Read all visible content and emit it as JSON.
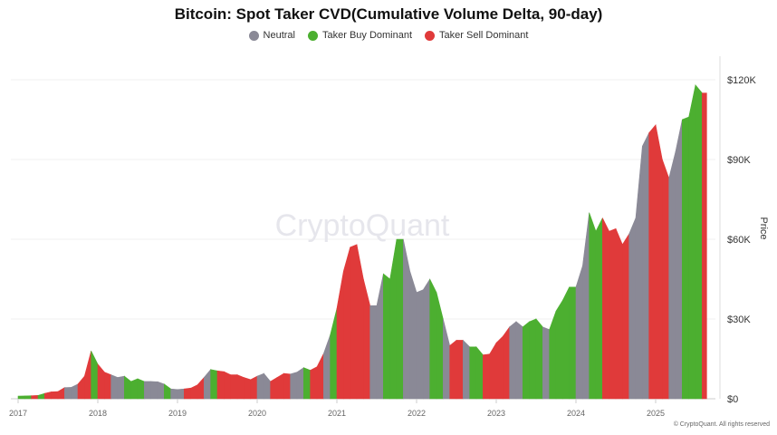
{
  "chart_data": {
    "type": "area",
    "title": "Bitcoin: Spot Taker CVD(Cumulative Volume Delta, 90-day)",
    "ylabel": "Price",
    "ylim": [
      0,
      130000
    ],
    "y_ticks": [
      "$0",
      "$30K",
      "$60K",
      "$90K",
      "$120K"
    ],
    "y_tick_values": [
      0,
      30000,
      60000,
      90000,
      120000
    ],
    "x_ticks": [
      "2017",
      "2018",
      "2019",
      "2020",
      "2021",
      "2022",
      "2023",
      "2024",
      "2025"
    ],
    "grid": true,
    "legend_position": "top-center",
    "legend": [
      {
        "key": "N",
        "label": "Neutral",
        "color": "#8a8996"
      },
      {
        "key": "B",
        "label": "Taker Buy Dominant",
        "color": "#4caf30"
      },
      {
        "key": "S",
        "label": "Taker Sell Dominant",
        "color": "#e03a3a"
      }
    ],
    "series": [
      [
        "2017-01",
        1000,
        "B"
      ],
      [
        "2017-02",
        1050,
        "B"
      ],
      [
        "2017-03",
        1150,
        "S"
      ],
      [
        "2017-04",
        1250,
        "B"
      ],
      [
        "2017-05",
        2000,
        "S"
      ],
      [
        "2017-06",
        2600,
        "S"
      ],
      [
        "2017-07",
        2700,
        "S"
      ],
      [
        "2017-08",
        4200,
        "N"
      ],
      [
        "2017-09",
        4300,
        "N"
      ],
      [
        "2017-10",
        5500,
        "S"
      ],
      [
        "2017-11",
        8500,
        "S"
      ],
      [
        "2017-12",
        18000,
        "B"
      ],
      [
        "2018-01",
        13000,
        "S"
      ],
      [
        "2018-02",
        10000,
        "S"
      ],
      [
        "2018-03",
        9000,
        "N"
      ],
      [
        "2018-04",
        8000,
        "N"
      ],
      [
        "2018-05",
        8500,
        "B"
      ],
      [
        "2018-06",
        6500,
        "B"
      ],
      [
        "2018-07",
        7500,
        "B"
      ],
      [
        "2018-08",
        6500,
        "N"
      ],
      [
        "2018-09",
        6500,
        "N"
      ],
      [
        "2018-10",
        6400,
        "N"
      ],
      [
        "2018-11",
        5500,
        "B"
      ],
      [
        "2018-12",
        3700,
        "N"
      ],
      [
        "2019-01",
        3500,
        "N"
      ],
      [
        "2019-02",
        3700,
        "S"
      ],
      [
        "2019-03",
        4000,
        "S"
      ],
      [
        "2019-04",
        5200,
        "S"
      ],
      [
        "2019-05",
        8000,
        "N"
      ],
      [
        "2019-06",
        11000,
        "B"
      ],
      [
        "2019-07",
        10500,
        "S"
      ],
      [
        "2019-08",
        10200,
        "S"
      ],
      [
        "2019-09",
        9000,
        "S"
      ],
      [
        "2019-10",
        9000,
        "S"
      ],
      [
        "2019-11",
        8000,
        "S"
      ],
      [
        "2019-12",
        7200,
        "S"
      ],
      [
        "2020-01",
        8500,
        "N"
      ],
      [
        "2020-02",
        9500,
        "N"
      ],
      [
        "2020-03",
        6500,
        "S"
      ],
      [
        "2020-04",
        8000,
        "S"
      ],
      [
        "2020-05",
        9500,
        "S"
      ],
      [
        "2020-06",
        9300,
        "N"
      ],
      [
        "2020-07",
        10000,
        "N"
      ],
      [
        "2020-08",
        11700,
        "B"
      ],
      [
        "2020-09",
        10700,
        "S"
      ],
      [
        "2020-10",
        12000,
        "S"
      ],
      [
        "2020-11",
        17000,
        "N"
      ],
      [
        "2020-12",
        24000,
        "B"
      ],
      [
        "2021-01",
        34000,
        "S"
      ],
      [
        "2021-02",
        48000,
        "S"
      ],
      [
        "2021-03",
        57000,
        "S"
      ],
      [
        "2021-04",
        58000,
        "S"
      ],
      [
        "2021-05",
        45000,
        "S"
      ],
      [
        "2021-06",
        35000,
        "N"
      ],
      [
        "2021-07",
        35000,
        "N"
      ],
      [
        "2021-08",
        47000,
        "B"
      ],
      [
        "2021-09",
        45000,
        "B"
      ],
      [
        "2021-10",
        60000,
        "B"
      ],
      [
        "2021-11",
        60000,
        "N"
      ],
      [
        "2021-12",
        48000,
        "N"
      ],
      [
        "2022-01",
        40000,
        "N"
      ],
      [
        "2022-02",
        41000,
        "N"
      ],
      [
        "2022-03",
        45000,
        "B"
      ],
      [
        "2022-04",
        40000,
        "B"
      ],
      [
        "2022-05",
        30000,
        "N"
      ],
      [
        "2022-06",
        20000,
        "S"
      ],
      [
        "2022-07",
        22000,
        "S"
      ],
      [
        "2022-08",
        22000,
        "N"
      ],
      [
        "2022-09",
        19500,
        "B"
      ],
      [
        "2022-10",
        19500,
        "B"
      ],
      [
        "2022-11",
        16500,
        "S"
      ],
      [
        "2022-12",
        16800,
        "S"
      ],
      [
        "2023-01",
        21000,
        "S"
      ],
      [
        "2023-02",
        23500,
        "S"
      ],
      [
        "2023-03",
        27000,
        "N"
      ],
      [
        "2023-04",
        29000,
        "N"
      ],
      [
        "2023-05",
        27000,
        "B"
      ],
      [
        "2023-06",
        29000,
        "B"
      ],
      [
        "2023-07",
        30000,
        "B"
      ],
      [
        "2023-08",
        27000,
        "N"
      ],
      [
        "2023-09",
        26000,
        "B"
      ],
      [
        "2023-10",
        33000,
        "B"
      ],
      [
        "2023-11",
        37000,
        "B"
      ],
      [
        "2023-12",
        42000,
        "B"
      ],
      [
        "2024-01",
        42000,
        "N"
      ],
      [
        "2024-02",
        50000,
        "N"
      ],
      [
        "2024-03",
        70000,
        "B"
      ],
      [
        "2024-04",
        63000,
        "B"
      ],
      [
        "2024-05",
        68000,
        "S"
      ],
      [
        "2024-06",
        63000,
        "S"
      ],
      [
        "2024-07",
        64000,
        "S"
      ],
      [
        "2024-08",
        58000,
        "S"
      ],
      [
        "2024-09",
        62000,
        "N"
      ],
      [
        "2024-10",
        68000,
        "N"
      ],
      [
        "2024-11",
        95000,
        "N"
      ],
      [
        "2024-12",
        100000,
        "S"
      ],
      [
        "2025-01",
        103000,
        "S"
      ],
      [
        "2025-02",
        90000,
        "S"
      ],
      [
        "2025-03",
        83000,
        "N"
      ],
      [
        "2025-04",
        93000,
        "N"
      ],
      [
        "2025-05",
        105000,
        "B"
      ],
      [
        "2025-06",
        106000,
        "B"
      ],
      [
        "2025-07",
        118000,
        "B"
      ],
      [
        "2025-08",
        115000,
        "S"
      ]
    ]
  },
  "watermark": "CryptoQuant",
  "footer": "© CryptoQuant. All rights reserved"
}
